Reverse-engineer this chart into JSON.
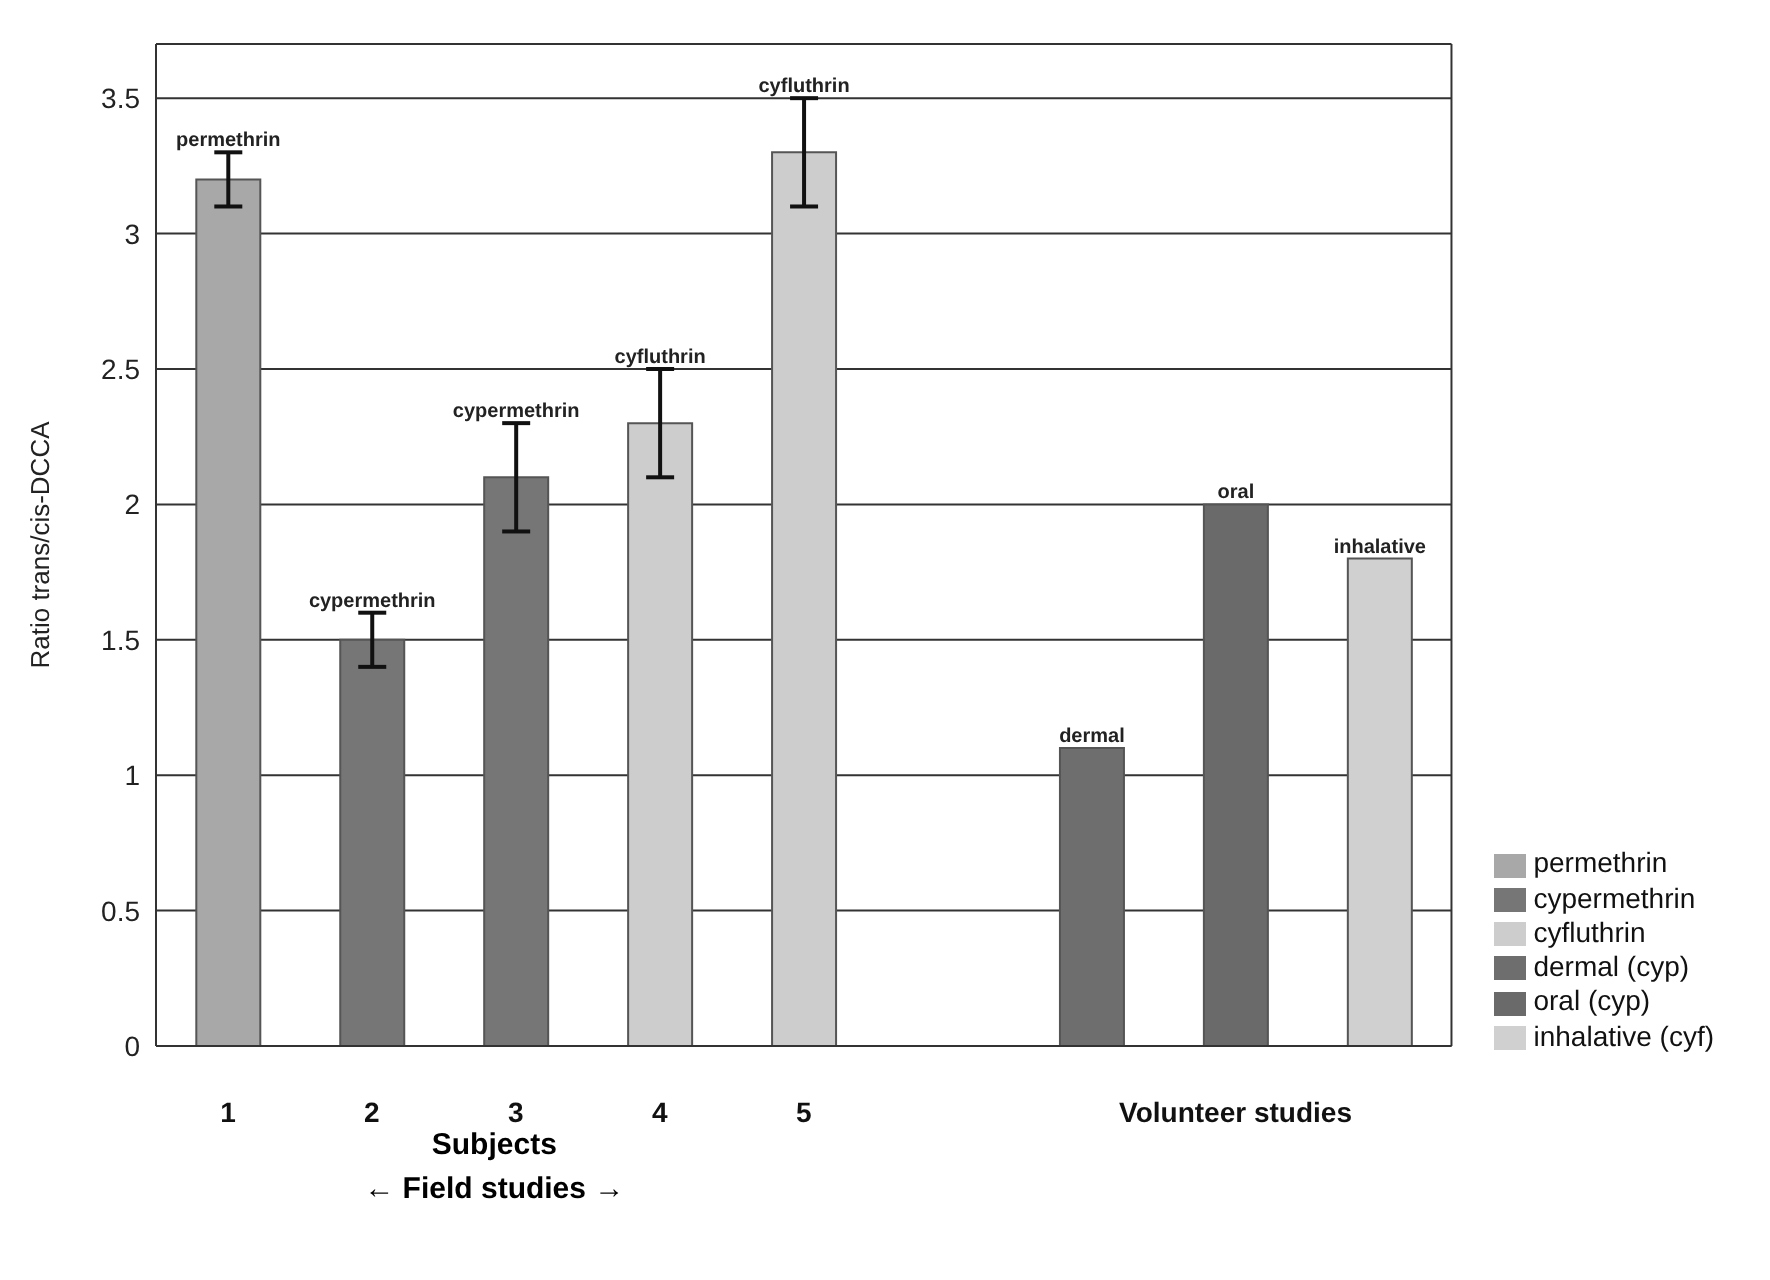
{
  "chart_data": {
    "type": "bar",
    "ylabel": "Ratio trans/cis-DCCA",
    "xlabel": "Subjects",
    "categories": [
      "1",
      "2",
      "3",
      "4",
      "5",
      null,
      null,
      "Volunteer studies",
      null
    ],
    "series": [
      {
        "name": "permethrin",
        "color": "#a8a8a8",
        "values": [
          3.2,
          null,
          null,
          null,
          null,
          null,
          null,
          null,
          null
        ],
        "errors": [
          0.1,
          null,
          null,
          null,
          null,
          null,
          null,
          null,
          null
        ],
        "value_labels": [
          "permethrin",
          null,
          null,
          null,
          null,
          null,
          null,
          null,
          null
        ]
      },
      {
        "name": "cypermethrin",
        "color": "#767676",
        "values": [
          null,
          1.5,
          2.1,
          null,
          null,
          null,
          null,
          null,
          null
        ],
        "errors": [
          null,
          0.1,
          0.2,
          null,
          null,
          null,
          null,
          null,
          null
        ],
        "value_labels": [
          null,
          "cypermethrin",
          "cypermethrin",
          null,
          null,
          null,
          null,
          null,
          null
        ]
      },
      {
        "name": "cyfluthrin",
        "color": "#cdcdcd",
        "values": [
          null,
          null,
          null,
          2.3,
          3.3,
          null,
          null,
          null,
          null
        ],
        "errors": [
          null,
          null,
          null,
          0.2,
          0.2,
          null,
          null,
          null,
          null
        ],
        "value_labels": [
          null,
          null,
          null,
          "cyfluthrin",
          "cyfluthrin",
          null,
          null,
          null,
          null
        ]
      },
      {
        "name": "dermal (cyp)",
        "color": "#6e6e6e",
        "values": [
          null,
          null,
          null,
          null,
          null,
          null,
          1.1,
          null,
          null
        ],
        "value_labels": [
          null,
          null,
          null,
          null,
          null,
          null,
          "dermal",
          null,
          null
        ]
      },
      {
        "name": "oral (cyp)",
        "color": "#6a6a6a",
        "values": [
          null,
          null,
          null,
          null,
          null,
          null,
          null,
          2.0,
          null
        ],
        "value_labels": [
          null,
          null,
          null,
          null,
          null,
          null,
          null,
          "oral",
          null
        ]
      },
      {
        "name": "inhalative (cyf)",
        "color": "#d0d0d0",
        "values": [
          null,
          null,
          null,
          null,
          null,
          null,
          null,
          null,
          1.8
        ],
        "value_labels": [
          null,
          null,
          null,
          null,
          null,
          null,
          null,
          null,
          "inhalative"
        ]
      }
    ],
    "ylim": [
      0,
      3.7
    ],
    "yticks": [
      0,
      0.5,
      1,
      1.5,
      2,
      2.5,
      3,
      3.5
    ],
    "grid": "y",
    "legend": "bottom right",
    "annotations": [
      "← Field studies →"
    ]
  }
}
